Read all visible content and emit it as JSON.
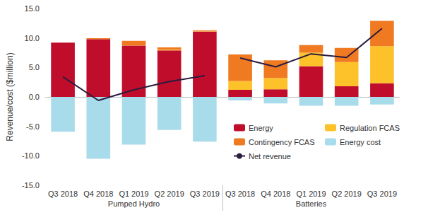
{
  "chart_data": {
    "type": "bar",
    "stacked": true,
    "grid": false,
    "legend": "lower right",
    "y_label": "Revenue/cost ($million)",
    "categories": [
      "Q3 2018",
      "Q4 2018",
      "Q1 2019",
      "Q2 2019",
      "Q3 2019",
      "Q3 2018",
      "Q4 2018",
      "Q1 2019",
      "Q2 2019",
      "Q3 2019"
    ],
    "groups": [
      {
        "name": "Pumped Hydro",
        "count": 5
      },
      {
        "name": "Batteries",
        "count": 5
      }
    ],
    "ylim": [
      -15,
      15
    ],
    "yticks": [
      {
        "value": -15,
        "label": "-15.0"
      },
      {
        "value": -10,
        "label": "-10.0"
      },
      {
        "value": -5,
        "label": "-5.0"
      },
      {
        "value": 0,
        "label": "0.0"
      },
      {
        "value": 5,
        "label": "5.0"
      },
      {
        "value": 10,
        "label": "10.0"
      },
      {
        "value": 15,
        "label": "15.0"
      }
    ],
    "series": [
      {
        "name": "Energy",
        "type": "bar",
        "color": "#c00d2c",
        "values": [
          9.2,
          9.8,
          8.7,
          7.9,
          11.1,
          1.2,
          1.3,
          5.2,
          1.8,
          2.3
        ]
      },
      {
        "name": "Regulation FCAS",
        "type": "bar",
        "color": "#fdc12a",
        "values": [
          0,
          0.05,
          0,
          0.1,
          0.1,
          1.5,
          1.9,
          2.3,
          4.1,
          6.3
        ]
      },
      {
        "name": "Contingency FCAS",
        "type": "bar",
        "color": "#f07a21",
        "values": [
          0,
          0.1,
          0.8,
          0.4,
          0.1,
          4.5,
          3.0,
          1.3,
          2.4,
          4.3
        ]
      },
      {
        "name": "Energy cost",
        "type": "bar",
        "color": "#a9dcea",
        "values": [
          -5.9,
          -10.5,
          -8.1,
          -5.6,
          -7.6,
          -0.6,
          -1.1,
          -1.5,
          -1.5,
          -1.3
        ]
      },
      {
        "name": "Net revenue",
        "type": "line",
        "color": "#2b1c3e",
        "marker": "none",
        "line_style": "solid",
        "values": [
          3.4,
          -0.6,
          1.2,
          2.6,
          3.6,
          6.6,
          5.1,
          7.3,
          6.7,
          11.6
        ]
      }
    ]
  }
}
